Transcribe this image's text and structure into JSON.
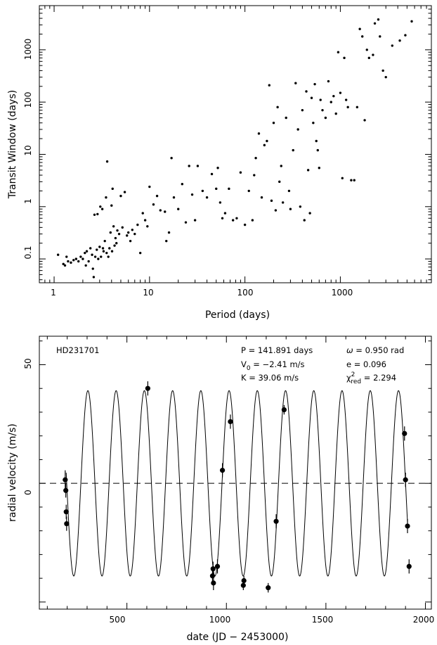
{
  "chart_data": [
    {
      "type": "scatter",
      "title": "",
      "xlabel": "Period (days)",
      "ylabel": "Transit Window (days)",
      "xscale": "log",
      "yscale": "log",
      "xlim": [
        0.7,
        9000
      ],
      "ylim": [
        0.035,
        7000
      ],
      "x_tick_labels": [
        "1",
        "10",
        "100",
        "1000"
      ],
      "x_tick_values": [
        1,
        10,
        100,
        1000
      ],
      "y_tick_labels": [
        "0.1",
        "1",
        "10",
        "100",
        "1000"
      ],
      "y_tick_values": [
        0.1,
        1,
        10,
        100,
        1000
      ],
      "grid": false,
      "marker": "dot",
      "points": [
        [
          1.1,
          0.12
        ],
        [
          1.25,
          0.08
        ],
        [
          1.3,
          0.075
        ],
        [
          1.35,
          0.11
        ],
        [
          1.4,
          0.09
        ],
        [
          1.5,
          0.085
        ],
        [
          1.6,
          0.095
        ],
        [
          1.7,
          0.1
        ],
        [
          1.8,
          0.09
        ],
        [
          1.9,
          0.11
        ],
        [
          2.0,
          0.1
        ],
        [
          2.1,
          0.13
        ],
        [
          2.15,
          0.075
        ],
        [
          2.2,
          0.14
        ],
        [
          2.3,
          0.09
        ],
        [
          2.4,
          0.16
        ],
        [
          2.5,
          0.12
        ],
        [
          2.55,
          0.065
        ],
        [
          2.6,
          0.045
        ],
        [
          2.65,
          0.7
        ],
        [
          2.7,
          0.11
        ],
        [
          2.8,
          0.15
        ],
        [
          2.85,
          0.72
        ],
        [
          2.9,
          0.1
        ],
        [
          3.0,
          0.17
        ],
        [
          3.05,
          1.0
        ],
        [
          3.1,
          0.11
        ],
        [
          3.2,
          0.9
        ],
        [
          3.25,
          0.16
        ],
        [
          3.3,
          0.14
        ],
        [
          3.4,
          0.22
        ],
        [
          3.5,
          1.5
        ],
        [
          3.55,
          0.13
        ],
        [
          3.6,
          7.3
        ],
        [
          3.7,
          0.11
        ],
        [
          3.8,
          0.16
        ],
        [
          3.9,
          0.32
        ],
        [
          4.0,
          1.05
        ],
        [
          4.05,
          0.14
        ],
        [
          4.1,
          2.2
        ],
        [
          4.2,
          0.42
        ],
        [
          4.3,
          0.18
        ],
        [
          4.4,
          0.25
        ],
        [
          4.5,
          0.2
        ],
        [
          4.6,
          0.35
        ],
        [
          4.8,
          0.3
        ],
        [
          5.0,
          1.6
        ],
        [
          5.2,
          0.4
        ],
        [
          5.5,
          1.9
        ],
        [
          5.8,
          0.28
        ],
        [
          6.0,
          0.32
        ],
        [
          6.3,
          0.22
        ],
        [
          6.6,
          0.36
        ],
        [
          7.0,
          0.3
        ],
        [
          7.5,
          0.45
        ],
        [
          8.0,
          0.13
        ],
        [
          8.5,
          0.75
        ],
        [
          9.0,
          0.55
        ],
        [
          9.5,
          0.42
        ],
        [
          10.0,
          2.4
        ],
        [
          11.0,
          1.1
        ],
        [
          12.0,
          1.6
        ],
        [
          13.0,
          0.85
        ],
        [
          14.5,
          0.8
        ],
        [
          15.0,
          0.22
        ],
        [
          16.0,
          0.32
        ],
        [
          17.0,
          8.5
        ],
        [
          18.0,
          1.5
        ],
        [
          20.0,
          0.9
        ],
        [
          22.0,
          2.7
        ],
        [
          24.0,
          0.5
        ],
        [
          26.0,
          6.0
        ],
        [
          28.0,
          1.7
        ],
        [
          30.0,
          0.55
        ],
        [
          32.0,
          6.0
        ],
        [
          36.0,
          2.0
        ],
        [
          40.0,
          1.5
        ],
        [
          45.0,
          4.2
        ],
        [
          50.0,
          2.2
        ],
        [
          52.0,
          5.5
        ],
        [
          55.0,
          1.2
        ],
        [
          58.0,
          0.6
        ],
        [
          62.0,
          0.75
        ],
        [
          68.0,
          2.2
        ],
        [
          75.0,
          0.55
        ],
        [
          82.0,
          0.6
        ],
        [
          90.0,
          4.5
        ],
        [
          100.0,
          0.45
        ],
        [
          110.0,
          2.0
        ],
        [
          120.0,
          0.55
        ],
        [
          125.0,
          4.0
        ],
        [
          130.0,
          8.5
        ],
        [
          140.0,
          25.0
        ],
        [
          150.0,
          1.5
        ],
        [
          160.0,
          15.0
        ],
        [
          170.0,
          18.0
        ],
        [
          180.0,
          210.0
        ],
        [
          190.0,
          1.3
        ],
        [
          200.0,
          40.0
        ],
        [
          210.0,
          0.85
        ],
        [
          220.0,
          80.0
        ],
        [
          230.0,
          3.0
        ],
        [
          240.0,
          6.0
        ],
        [
          250.0,
          1.2
        ],
        [
          270.0,
          50.0
        ],
        [
          290.0,
          2.0
        ],
        [
          300.0,
          0.9
        ],
        [
          320.0,
          12.0
        ],
        [
          340.0,
          230.0
        ],
        [
          360.0,
          30.0
        ],
        [
          380.0,
          1.0
        ],
        [
          400.0,
          70.0
        ],
        [
          420.0,
          0.55
        ],
        [
          440.0,
          160.0
        ],
        [
          460.0,
          5.0
        ],
        [
          480.0,
          0.75
        ],
        [
          500.0,
          120.0
        ],
        [
          520.0,
          40.0
        ],
        [
          540.0,
          220.0
        ],
        [
          560.0,
          18.0
        ],
        [
          580.0,
          12.0
        ],
        [
          600.0,
          5.5
        ],
        [
          620.0,
          110.0
        ],
        [
          650.0,
          70.0
        ],
        [
          700.0,
          50.0
        ],
        [
          750.0,
          250.0
        ],
        [
          800.0,
          100.0
        ],
        [
          850.0,
          130.0
        ],
        [
          900.0,
          60.0
        ],
        [
          950.0,
          900.0
        ],
        [
          1000.0,
          150.0
        ],
        [
          1050.0,
          3.5
        ],
        [
          1100.0,
          700.0
        ],
        [
          1150.0,
          110.0
        ],
        [
          1200.0,
          80.0
        ],
        [
          1300.0,
          3.2
        ],
        [
          1400.0,
          3.2
        ],
        [
          1500.0,
          80.0
        ],
        [
          1600.0,
          2500.0
        ],
        [
          1700.0,
          1800.0
        ],
        [
          1800.0,
          45.0
        ],
        [
          1900.0,
          1000.0
        ],
        [
          2000.0,
          700.0
        ],
        [
          2200.0,
          800.0
        ],
        [
          2300.0,
          3200.0
        ],
        [
          2500.0,
          3800.0
        ],
        [
          2600.0,
          1800.0
        ],
        [
          2800.0,
          400.0
        ],
        [
          3000.0,
          300.0
        ],
        [
          3500.0,
          1200.0
        ],
        [
          4200.0,
          1500.0
        ],
        [
          4800.0,
          1900.0
        ],
        [
          5600.0,
          3500.0
        ]
      ]
    },
    {
      "type": "line",
      "title": "",
      "star_label": "HD231701",
      "xlabel": "date (JD − 2453000)",
      "ylabel": "radial velocity (m/s)",
      "xlim": [
        60,
        2030
      ],
      "ylim": [
        -53,
        62
      ],
      "x_tick_labels": [
        "500",
        "1000",
        "1500",
        "2000"
      ],
      "x_tick_values": [
        500,
        1000,
        1500,
        2000
      ],
      "y_tick_labels": [
        "0",
        "50"
      ],
      "y_tick_values": [
        0,
        50
      ],
      "grid": false,
      "params": {
        "P": "P = 141.891 days",
        "V0_prefix": "V",
        "V0_sub": "0",
        "V0_value": " = −2.41 m/s",
        "K": "K = 39.06 m/s",
        "omega_symbol": "ω",
        "omega_value": " = 0.950 rad",
        "e": "e = 0.096",
        "chi_symbol": "χ",
        "chi_sup": "2",
        "chi_sub": "red",
        "chi_value": " = 2.294"
      },
      "model": {
        "period": 141.891,
        "amplitude": 39.06,
        "peak_epoch": 304,
        "x_start": 195,
        "x_end": 1910,
        "style": "solid"
      },
      "zero_line": {
        "y": 0,
        "style": "dashed"
      },
      "observations": [
        {
          "x": 190,
          "y": 1.5,
          "err": 4
        },
        {
          "x": 193,
          "y": -3,
          "err": 3
        },
        {
          "x": 195,
          "y": -12,
          "err": 3
        },
        {
          "x": 197,
          "y": -17,
          "err": 3
        },
        {
          "x": 605,
          "y": 40,
          "err": 3
        },
        {
          "x": 930,
          "y": -39,
          "err": 3
        },
        {
          "x": 933,
          "y": -36,
          "err": 3
        },
        {
          "x": 935,
          "y": -42,
          "err": 3
        },
        {
          "x": 955,
          "y": -35,
          "err": 3
        },
        {
          "x": 980,
          "y": 5.5,
          "err": 3
        },
        {
          "x": 1020,
          "y": 26,
          "err": 3
        },
        {
          "x": 1085,
          "y": -43,
          "err": 2
        },
        {
          "x": 1088,
          "y": -41,
          "err": 2
        },
        {
          "x": 1210,
          "y": -44,
          "err": 2
        },
        {
          "x": 1250,
          "y": -16,
          "err": 3
        },
        {
          "x": 1290,
          "y": 31,
          "err": 2
        },
        {
          "x": 1895,
          "y": 21,
          "err": 3
        },
        {
          "x": 1900,
          "y": 1.5,
          "err": 3
        },
        {
          "x": 1910,
          "y": -18,
          "err": 3
        },
        {
          "x": 1918,
          "y": -35,
          "err": 3
        }
      ]
    }
  ]
}
